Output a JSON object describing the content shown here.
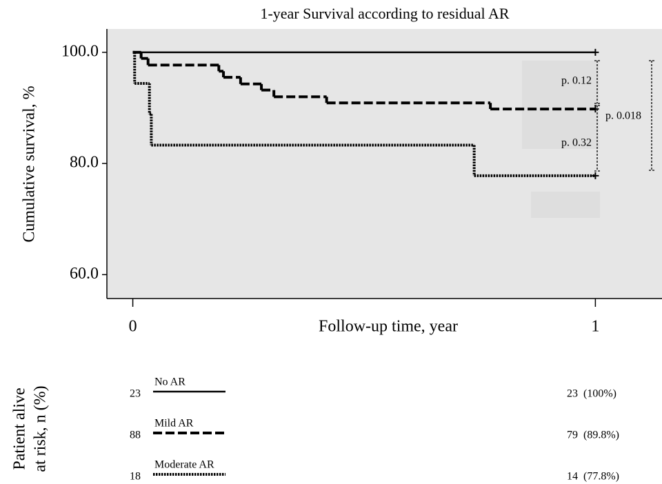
{
  "chart_data": {
    "type": "step",
    "title": "1-year Survival according to residual AR",
    "y_label": "Cumulative survival, %",
    "x_label": "Follow-up time, year",
    "xlim": [
      -0.056,
      1.144
    ],
    "ylim": [
      55.7,
      104.2
    ],
    "xticks": [
      0,
      1
    ],
    "yticks": [
      {
        "value": 60,
        "label": "60.0"
      },
      {
        "value": 80,
        "label": "80.0"
      },
      {
        "value": 100,
        "label": "100.0"
      }
    ],
    "background": "#e6e6e6",
    "series": [
      {
        "name": "No AR",
        "color": "#000000",
        "style": "solid",
        "x": [
          0,
          1
        ],
        "values": [
          100,
          100
        ]
      },
      {
        "name": "Mild AR",
        "color": "#000000",
        "style": "dashed",
        "x": [
          0,
          0.018,
          0.033,
          0.186,
          0.196,
          0.233,
          0.278,
          0.305,
          0.419,
          0.773,
          1
        ],
        "values": [
          100,
          98.9,
          97.7,
          96.6,
          95.5,
          94.3,
          93.2,
          92.0,
          90.9,
          89.8,
          89.8
        ]
      },
      {
        "name": "Moderate AR",
        "color": "#000000",
        "style": "dotted",
        "x": [
          0,
          0.004,
          0.036,
          0.04,
          0.738,
          1
        ],
        "values": [
          100,
          94.4,
          88.9,
          83.3,
          77.8,
          77.8
        ]
      }
    ],
    "annotations": [
      "p. 0.12",
      "p. 0.32",
      "p. 0.018"
    ],
    "risk_table": {
      "title": [
        "Patient alive",
        "at risk, n (%)"
      ],
      "at_start": [
        23,
        88,
        18
      ],
      "at_end": [
        "23  (100%)",
        "79  (89.8%)",
        "14  (77.8%)"
      ]
    }
  }
}
